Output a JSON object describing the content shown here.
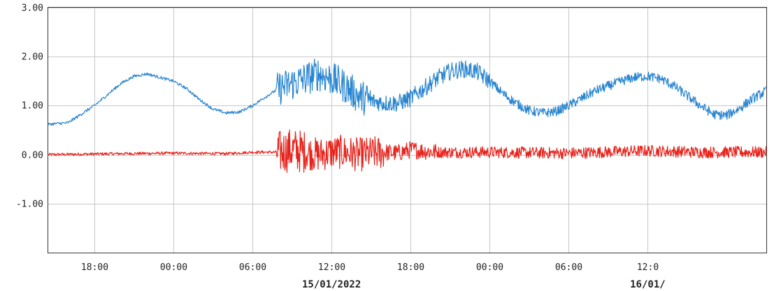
{
  "chart_data": {
    "type": "line",
    "title": "",
    "xlabel": "",
    "ylabel": "",
    "ylim": [
      -2.0,
      3.0
    ],
    "y_ticks": [
      {
        "value": 3.0,
        "label": "3.00"
      },
      {
        "value": 2.0,
        "label": "2.00"
      },
      {
        "value": 1.0,
        "label": "1.00"
      },
      {
        "value": 0.0,
        "label": "0.00"
      },
      {
        "value": -1.0,
        "label": "-1.00"
      }
    ],
    "x_range_hours": [
      -9.5,
      45.0
    ],
    "x_ticks": [
      {
        "hour": -6,
        "label": "18:00"
      },
      {
        "hour": 0,
        "label": "00:00"
      },
      {
        "hour": 6,
        "label": "06:00"
      },
      {
        "hour": 12,
        "label": "12:00"
      },
      {
        "hour": 18,
        "label": "18:00"
      },
      {
        "hour": 24,
        "label": "00:00"
      },
      {
        "hour": 30,
        "label": "06:00"
      },
      {
        "hour": 36,
        "label": "12:0"
      }
    ],
    "date_labels": [
      {
        "hour": 12,
        "label": "15/01/2022"
      },
      {
        "hour": 36,
        "label": "16/01/"
      }
    ],
    "grid": true,
    "legend": "none",
    "series": [
      {
        "color": "#2a86d0",
        "x": [
          -9.5,
          -8,
          -6,
          -4,
          -3,
          -2,
          0,
          1,
          2,
          3,
          4,
          5,
          6,
          7,
          8,
          9,
          10,
          11,
          12,
          13,
          14,
          15,
          16,
          17,
          18,
          19,
          20,
          21,
          22,
          23,
          24,
          25,
          26,
          27,
          28,
          29,
          30,
          31,
          32,
          33,
          34,
          35,
          36,
          37,
          38,
          39,
          40,
          41,
          42,
          43,
          44,
          45
        ],
        "values": [
          0.62,
          0.65,
          1.0,
          1.45,
          1.6,
          1.65,
          1.5,
          1.35,
          1.12,
          0.93,
          0.85,
          0.87,
          1.0,
          1.18,
          1.35,
          1.45,
          1.55,
          1.65,
          1.55,
          1.4,
          1.2,
          1.1,
          1.05,
          1.05,
          1.15,
          1.35,
          1.55,
          1.7,
          1.75,
          1.7,
          1.5,
          1.25,
          1.05,
          0.9,
          0.85,
          0.88,
          1.0,
          1.15,
          1.3,
          1.4,
          1.5,
          1.58,
          1.6,
          1.55,
          1.4,
          1.2,
          1.0,
          0.82,
          0.8,
          0.95,
          1.15,
          1.3
        ]
      },
      {
        "color": "#e8231c",
        "x": [
          -9.5,
          -4,
          0,
          4,
          6,
          7,
          8,
          9,
          10,
          11,
          12,
          13,
          14,
          15,
          16,
          17,
          18,
          20,
          24,
          30,
          36,
          40,
          45
        ],
        "values": [
          0.0,
          0.02,
          0.03,
          0.02,
          0.05,
          0.05,
          0.05,
          0.1,
          0.05,
          0.0,
          0.05,
          0.05,
          0.0,
          0.02,
          0.05,
          0.03,
          0.1,
          0.05,
          0.05,
          0.03,
          0.08,
          0.05,
          0.05
        ]
      }
    ]
  }
}
